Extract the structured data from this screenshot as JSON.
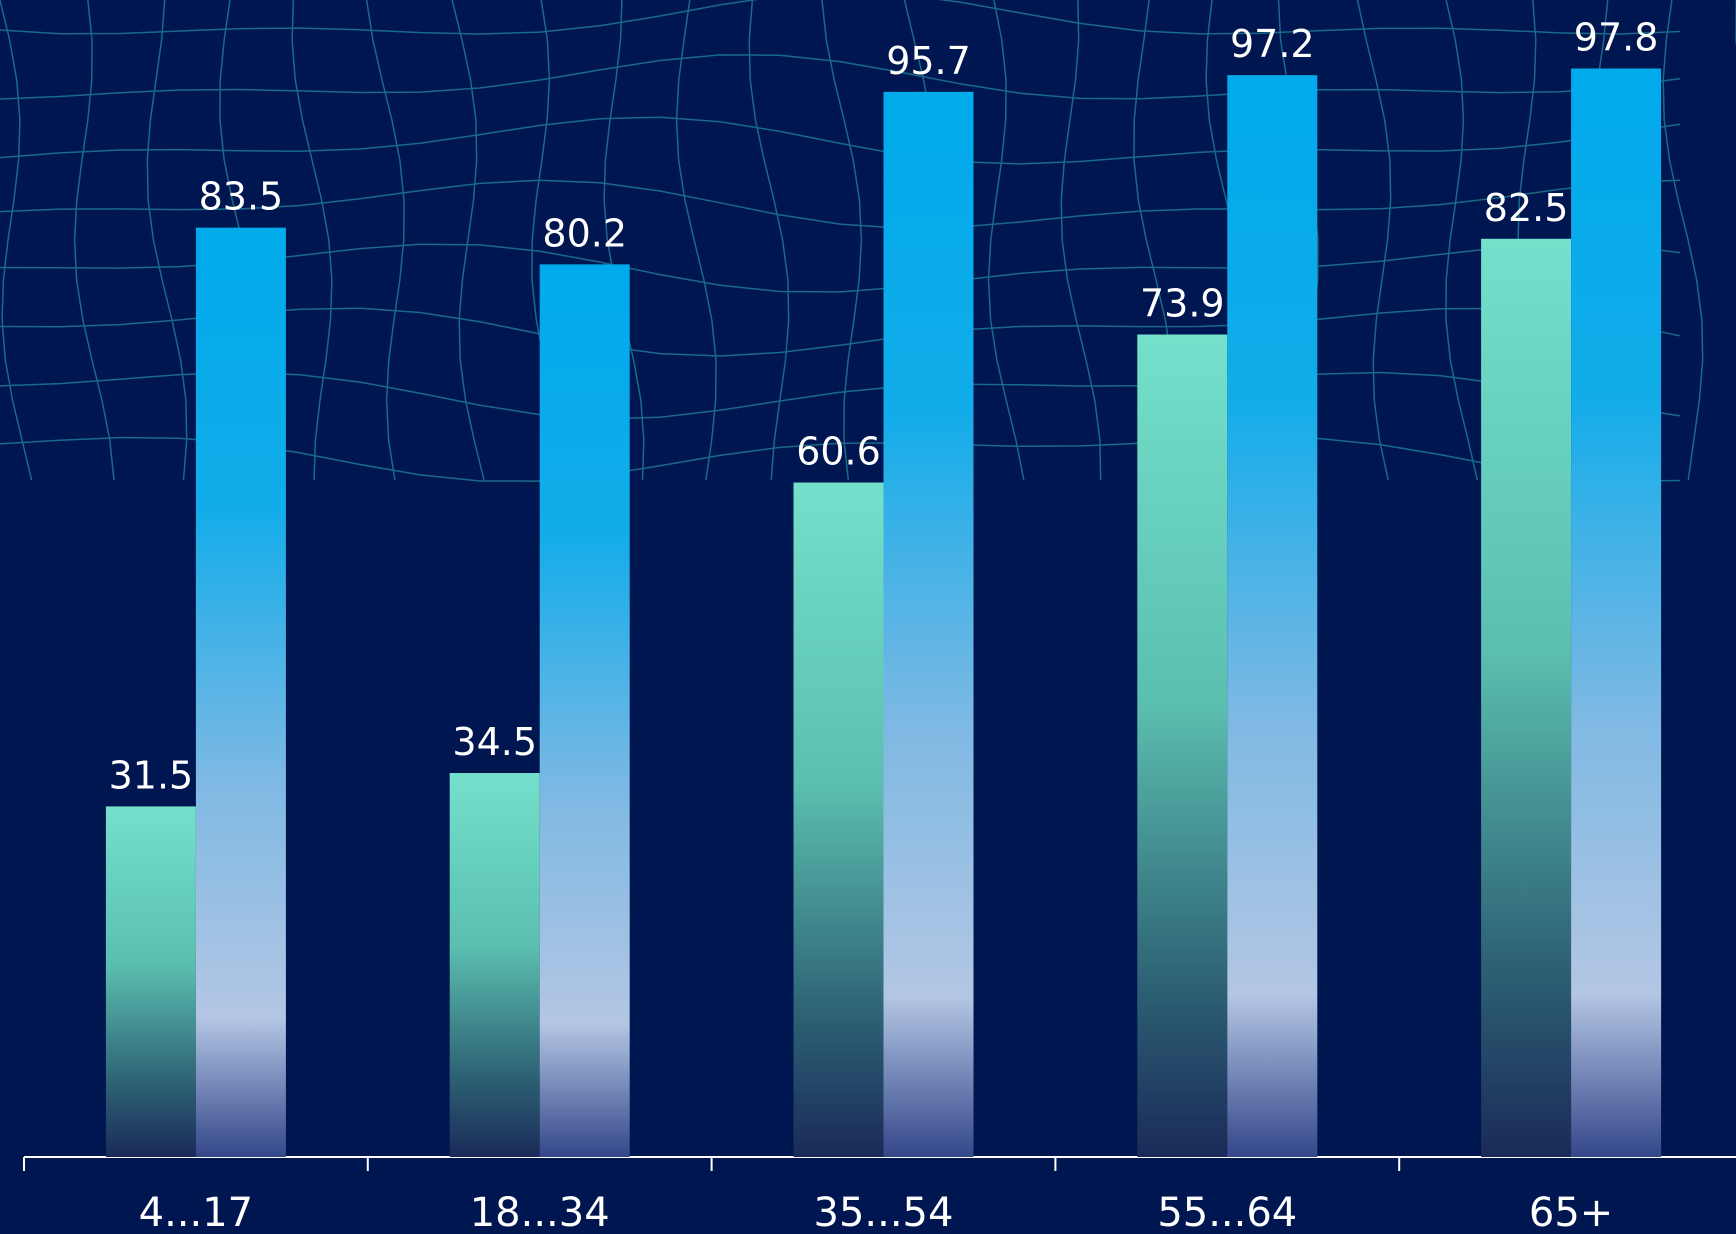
{
  "chart_data": {
    "type": "bar",
    "categories": [
      "4...17",
      "18...34",
      "35...54",
      "55...64",
      "65+"
    ],
    "series": [
      {
        "color": "#74e0cb",
        "values": [
          31.5,
          34.5,
          60.6,
          73.9,
          82.5
        ]
      },
      {
        "color": "#00aaeb",
        "values": [
          83.5,
          80.2,
          95.7,
          97.2,
          97.8
        ]
      }
    ],
    "ylim": [
      0,
      100
    ]
  }
}
